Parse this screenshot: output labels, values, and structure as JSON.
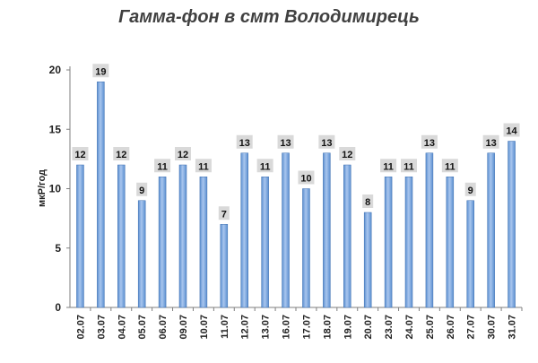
{
  "chart_data": {
    "type": "bar",
    "title": "Гамма-фон в смт Володимирець",
    "xlabel": "",
    "ylabel": "мкР/год",
    "ylim": [
      0,
      20
    ],
    "yticks": [
      0,
      5,
      10,
      15,
      20
    ],
    "grid": false,
    "categories": [
      "02.07",
      "03.07",
      "04.07",
      "05.07",
      "06.07",
      "09.07",
      "10.07",
      "11.07",
      "12.07",
      "13.07",
      "16.07",
      "17.07",
      "18.07",
      "19.07",
      "20.07",
      "23.07",
      "24.07",
      "25.07",
      "26.07",
      "27.07",
      "30.07",
      "31.07"
    ],
    "values": [
      12,
      19,
      12,
      9,
      11,
      12,
      11,
      7,
      13,
      11,
      13,
      10,
      13,
      12,
      8,
      11,
      11,
      13,
      11,
      9,
      13,
      14
    ],
    "bar_color": "#5b8fd0",
    "bar_color_light": "#a9c6ee",
    "label_bg": "#d9d9d9"
  }
}
